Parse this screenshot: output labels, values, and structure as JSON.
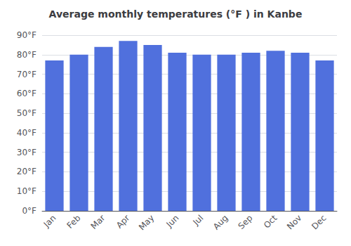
{
  "chart_data": {
    "type": "bar",
    "title": "Average monthly temperatures (°F ) in Kanbe",
    "categories": [
      "Jan",
      "Feb",
      "Mar",
      "Apr",
      "May",
      "Jun",
      "Jul",
      "Aug",
      "Sep",
      "Oct",
      "Nov",
      "Dec"
    ],
    "values": [
      77,
      80,
      84,
      87,
      85,
      81,
      80,
      80,
      81,
      82,
      81,
      77
    ],
    "ylim": [
      0,
      90
    ],
    "yticks": [
      {
        "value": 0,
        "label": "0°F"
      },
      {
        "value": 10,
        "label": "10°F"
      },
      {
        "value": 20,
        "label": "20°F"
      },
      {
        "value": 30,
        "label": "30°F"
      },
      {
        "value": 40,
        "label": "40°F"
      },
      {
        "value": 50,
        "label": "50°F"
      },
      {
        "value": 60,
        "label": "60°F"
      },
      {
        "value": 70,
        "label": "70°F"
      },
      {
        "value": 80,
        "label": "80°F"
      },
      {
        "value": 90,
        "label": "90°F"
      }
    ],
    "grid": true
  }
}
